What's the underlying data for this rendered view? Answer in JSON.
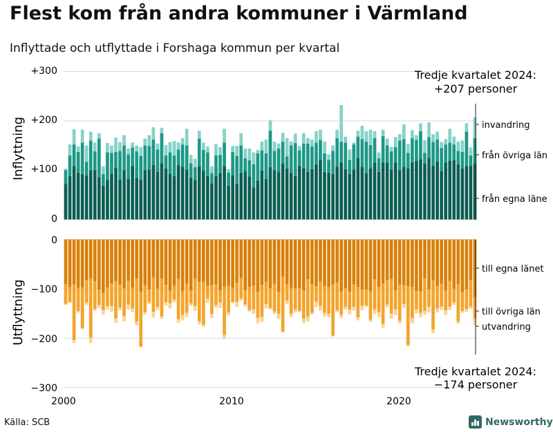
{
  "title": "Flest kom från andra kommuner i Värmland",
  "subtitle": "Inflyttade och utflyttade i Forshaga kommun per kvartal",
  "source": "Källa: SCB",
  "logo_text": "Newsworthy",
  "colors": {
    "in_egna": "#0b5e52",
    "in_ovriga": "#1d9886",
    "in_invandring": "#86d2c8",
    "out_egna": "#d98009",
    "out_ovriga": "#f3a42c",
    "out_utvandring": "#fbd396",
    "grid": "#d9d9d9",
    "text": "#111111"
  },
  "chart_data": {
    "type": "bar",
    "stacked": true,
    "x_start": "2000 Q1",
    "x_end": "2024 Q3",
    "x_ticks": [
      "2000",
      "2010",
      "2020"
    ],
    "panels": [
      {
        "ylabel": "Inflyttning",
        "ylim": [
          0,
          300
        ],
        "y_ticks": [
          "+300",
          "+200",
          "+100",
          "0"
        ],
        "annotation": [
          "Tredje kvartalet 2024:",
          "+207 personer"
        ],
        "series": [
          {
            "name": "från egna läne",
            "values": [
              72,
              88,
              108,
              95,
              92,
              89,
              100,
              100,
              86,
              68,
              80,
              93,
              105,
              81,
              100,
              82,
              108,
              84,
              81,
              100,
              101,
              111,
              96,
              114,
              103,
              93,
              88,
              110,
              107,
              101,
              85,
              80,
              108,
              99,
              88,
              73,
              88,
              94,
              108,
              68,
              89,
              72,
              95,
              98,
              87,
              65,
              79,
              99,
              82,
              106,
              100,
              97,
              114,
              104,
              95,
              88,
              109,
              104,
              96,
              102,
              112,
              121,
              96,
              95,
              92,
              107,
              116,
              102,
              92,
              101,
              124,
              107,
              94,
              104,
              115,
              96,
              116,
              115,
              101,
              115,
              100,
              107,
              104,
              116,
              119,
              122,
              113,
              125,
              109,
              118,
              98,
              116,
              119,
              120,
              112,
              103,
              108,
              109,
              114
            ]
          },
          {
            "name": "från övriga län",
            "values": [
              28,
              42,
              44,
              42,
              64,
              28,
              60,
              38,
              78,
              24,
              56,
              42,
              32,
              58,
              50,
              50,
              38,
              54,
              48,
              50,
              48,
              51,
              46,
              61,
              27,
              43,
              42,
              32,
              45,
              49,
              29,
              26,
              56,
              42,
              48,
              21,
              42,
              37,
              48,
              27,
              48,
              57,
              55,
              26,
              33,
              47,
              55,
              41,
              52,
              74,
              39,
              47,
              44,
              24,
              55,
              67,
              31,
              50,
              58,
              46,
              44,
              40,
              38,
              26,
              47,
              58,
              42,
              54,
              29,
              51,
              44,
              56,
              64,
              47,
              50,
              28,
              53,
              35,
              37,
              32,
              60,
              56,
              31,
              49,
              42,
              57,
              22,
              42,
              48,
              44,
              47,
              36,
              37,
              32,
              27,
              34,
              70,
              21,
              51
            ]
          },
          {
            "name": "invandring",
            "values": [
              3,
              22,
              31,
              11,
              26,
              33,
              18,
              18,
              11,
              16,
              19,
              15,
              29,
              18,
              21,
              12,
              10,
              12,
              18,
              14,
              22,
              25,
              12,
              11,
              21,
              21,
              29,
              14,
              13,
              34,
              17,
              17,
              16,
              15,
              12,
              14,
              23,
              16,
              28,
              7,
              12,
              20,
              25,
              20,
              24,
              24,
              7,
              18,
              28,
              21,
              19,
              10,
              18,
              37,
              8,
              19,
              9,
              21,
              11,
              14,
              23,
              21,
              24,
              11,
              11,
              17,
              74,
              12,
              21,
              4,
              12,
              27,
              21,
              31,
              14,
              12,
              13,
              14,
              9,
              20,
              13,
              30,
              18,
              16,
              10,
              16,
              26,
              30,
              16,
              16,
              12,
              11,
              28,
              16,
              19,
              23,
              17,
              16,
              42
            ]
          }
        ]
      },
      {
        "ylabel": "Utflyttning",
        "ylim": [
          -300,
          0
        ],
        "y_ticks": [
          "0",
          "−100",
          "−200",
          "−300"
        ],
        "annotation": [
          "Tredje kvartalet 2024:",
          "−174 personer"
        ],
        "series": [
          {
            "name": "till egna länet",
            "values": [
              -91,
              -97,
              -91,
              -98,
              -97,
              -83,
              -80,
              -85,
              -102,
              -108,
              -98,
              -89,
              -85,
              -92,
              -99,
              -84,
              -98,
              -79,
              -106,
              -93,
              -101,
              -77,
              -100,
              -79,
              -92,
              -104,
              -94,
              -80,
              -105,
              -89,
              -104,
              -80,
              -86,
              -86,
              -94,
              -93,
              -91,
              -103,
              -96,
              -94,
              -98,
              -88,
              -78,
              -103,
              -96,
              -94,
              -106,
              -92,
              -86,
              -99,
              -90,
              -106,
              -76,
              -91,
              -98,
              -99,
              -99,
              -104,
              -81,
              -91,
              -95,
              -85,
              -94,
              -97,
              -91,
              -87,
              -106,
              -99,
              -106,
              -91,
              -96,
              -102,
              -102,
              -105,
              -81,
              -96,
              -89,
              -83,
              -80,
              -103,
              -92,
              -93,
              -95,
              -96,
              -105,
              -106,
              -79,
              -101,
              -83,
              -95,
              -90,
              -104,
              -84,
              -100,
              -91,
              -107,
              -101,
              -83,
              -117
            ]
          },
          {
            "name": "till övriga län",
            "values": [
              -40,
              -30,
              -113,
              -47,
              -83,
              -45,
              -119,
              -56,
              -31,
              -35,
              -37,
              -46,
              -75,
              -46,
              -56,
              -48,
              -42,
              -88,
              -111,
              -54,
              -26,
              -70,
              -36,
              -77,
              -35,
              -25,
              -28,
              -82,
              -48,
              -60,
              -26,
              -55,
              -80,
              -87,
              -26,
              -58,
              -42,
              -25,
              -98,
              -54,
              -29,
              -39,
              -42,
              -29,
              -47,
              -48,
              -53,
              -65,
              -45,
              -40,
              -56,
              -45,
              -111,
              -33,
              -53,
              -43,
              -46,
              -57,
              -75,
              -58,
              -31,
              -50,
              -55,
              -54,
              -104,
              -57,
              -47,
              -37,
              -36,
              -46,
              -62,
              -32,
              -32,
              -58,
              -61,
              -51,
              -82,
              -49,
              -70,
              -39,
              -73,
              -38,
              -119,
              -64,
              -37,
              -43,
              -66,
              -36,
              -100,
              -45,
              -46,
              -40,
              -52,
              -28,
              -75,
              -38,
              -40,
              -53,
              -43
            ]
          },
          {
            "name": "utvandring",
            "values": [
              -2,
              -1,
              -6,
              -3,
              -2,
              -5,
              -11,
              -4,
              -6,
              -10,
              -7,
              -11,
              -9,
              -6,
              -11,
              -10,
              -7,
              -7,
              -2,
              -5,
              -4,
              -11,
              -7,
              -5,
              -7,
              -11,
              -5,
              -7,
              -11,
              -9,
              -5,
              -10,
              -6,
              -4,
              -8,
              -8,
              -5,
              -11,
              -8,
              -6,
              -2,
              -10,
              -4,
              -4,
              -3,
              -9,
              -11,
              -10,
              -9,
              -3,
              -5,
              -10,
              -2,
              -7,
              -6,
              -6,
              -2,
              -9,
              -10,
              -3,
              -11,
              -10,
              -7,
              -7,
              -2,
              -3,
              -6,
              -6,
              -10,
              -7,
              -6,
              -9,
              -3,
              -4,
              -9,
              -10,
              -8,
              -6,
              -10,
              -11,
              -5,
              -8,
              -3,
              -10,
              -8,
              -9,
              -8,
              -11,
              -7,
              -8,
              -7,
              -9,
              -7,
              -5,
              -5,
              -4,
              -6,
              -5,
              -14
            ]
          }
        ]
      }
    ]
  }
}
